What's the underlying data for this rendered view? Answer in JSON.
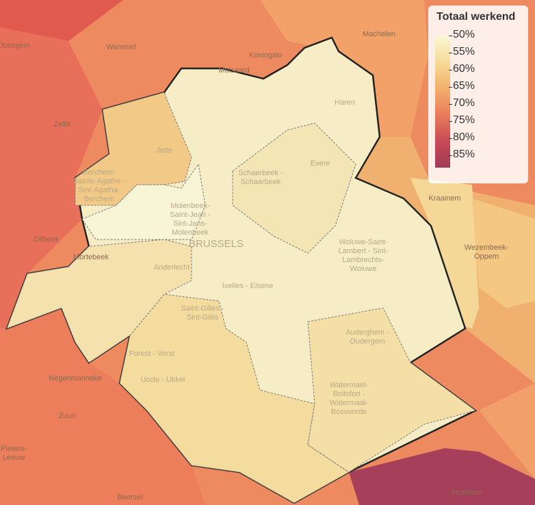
{
  "legend": {
    "title": "Totaal werkend",
    "labels": [
      "50%",
      "55%",
      "60%",
      "65%",
      "70%",
      "75%",
      "80%",
      "85%"
    ]
  },
  "places": [
    {
      "lines": [
        "Obbegem"
      ]
    },
    {
      "lines": [
        "Wemmel"
      ]
    },
    {
      "lines": [
        "Koningslo"
      ]
    },
    {
      "lines": [
        "Mutsaard"
      ]
    },
    {
      "lines": [
        "Machelen"
      ]
    },
    {
      "lines": [
        "Haren"
      ]
    },
    {
      "lines": [
        "Zellik"
      ]
    },
    {
      "lines": [
        "Jette"
      ]
    },
    {
      "lines": [
        "Berchem-",
        "Sainte-Agathe -",
        "Sint-Agatha-",
        "Berchem"
      ]
    },
    {
      "lines": [
        "Molenbeek-",
        "Saint-Jean -",
        "Sint-Jans-",
        "Molenbeek"
      ]
    },
    {
      "lines": [
        "BRUSSELS"
      ]
    },
    {
      "lines": [
        "Schaerbeek -",
        "Schaarbeek"
      ]
    },
    {
      "lines": [
        "Evere"
      ]
    },
    {
      "lines": [
        "Kraainem"
      ]
    },
    {
      "lines": [
        "Woluwe-Saint-",
        "Lambert - Sint-",
        "Lambrechts-",
        "Woluwe"
      ]
    },
    {
      "lines": [
        "Wezembeek-",
        "Oppem"
      ]
    },
    {
      "lines": [
        "Dilbeek"
      ]
    },
    {
      "lines": [
        "Mortebeek"
      ]
    },
    {
      "lines": [
        "Anderlecht"
      ]
    },
    {
      "lines": [
        "Ixelles - Elsene"
      ]
    },
    {
      "lines": [
        "Saint-Gilles -",
        "Sint-Gillis"
      ]
    },
    {
      "lines": [
        "Auderghem -",
        "Oudergem"
      ]
    },
    {
      "lines": [
        "Forest - Vorst"
      ]
    },
    {
      "lines": [
        "Uccle - Ukkel"
      ]
    },
    {
      "lines": [
        "Negenmanneke"
      ]
    },
    {
      "lines": [
        "Zuun"
      ]
    },
    {
      "lines": [
        "Watermael-",
        "Boitsfort -",
        "Watermaal-",
        "Bosvoorde"
      ]
    },
    {
      "lines": [
        "Beersel"
      ]
    },
    {
      "lines": [
        "Hoeilaart"
      ]
    },
    {
      "lines": [
        "Pieters-",
        "Leeuw"
      ]
    }
  ]
}
